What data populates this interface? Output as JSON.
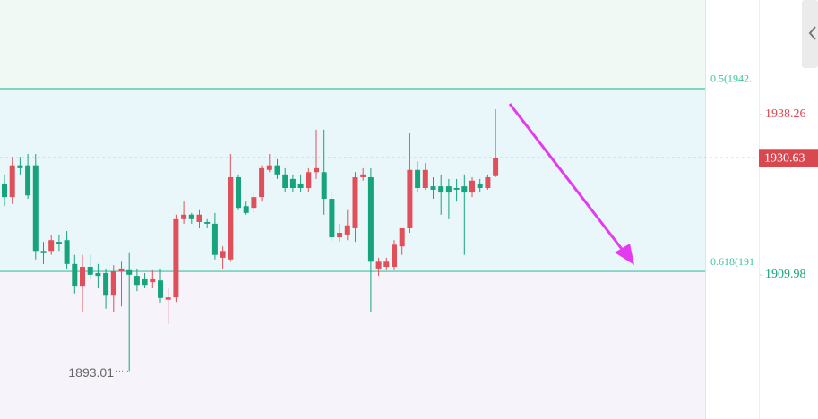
{
  "chart_data": {
    "type": "candlestick",
    "open": [
      1926.1,
      1923.7,
      1929.3,
      1929.3,
      1929.3,
      1914.2,
      1914.2,
      1915.8,
      1916.1,
      1911.9,
      1907.9,
      1911.4,
      1910.3,
      1910.3,
      1906.3,
      1910.6,
      1910.8,
      1909.8,
      1909.2,
      1908.7,
      1909.0,
      1905.6,
      1906.0,
      1919.8,
      1920.6,
      1919.3,
      1919.3,
      1919.0,
      1913.0,
      1912.7,
      1927.2,
      1922.1,
      1921.8,
      1923.7,
      1928.5,
      1929.3,
      1927.7,
      1926.9,
      1926.1,
      1925.3,
      1928.1,
      1928.1,
      1923.4,
      1916.6,
      1917.1,
      1918.2,
      1927.2,
      1927.2,
      1911.1,
      1911.4,
      1911.4,
      1915.0,
      1918.2,
      1928.5,
      1925.3,
      1925.6,
      1925.6,
      1925.6,
      1925.3,
      1925.6,
      1924.5,
      1926.1,
      1925.3,
      1927.4
    ],
    "high": [
      1927.7,
      1930.8,
      1930.8,
      1931.3,
      1931.3,
      1915.8,
      1917.1,
      1917.1,
      1917.7,
      1913.5,
      1913.5,
      1913.5,
      1911.9,
      1911.1,
      1911.7,
      1912.3,
      1913.8,
      1911.1,
      1910.3,
      1910.8,
      1911.1,
      1907.6,
      1920.6,
      1922.9,
      1920.9,
      1921.4,
      1919.8,
      1920.9,
      1915.0,
      1931.3,
      1927.7,
      1922.9,
      1924.5,
      1929.3,
      1931.3,
      1930.4,
      1928.8,
      1927.7,
      1927.7,
      1928.8,
      1935.6,
      1935.6,
      1924.5,
      1919.0,
      1921.4,
      1928.1,
      1928.8,
      1928.8,
      1913.0,
      1913.0,
      1916.1,
      1918.2,
      1935.1,
      1930.0,
      1929.7,
      1927.2,
      1927.7,
      1926.9,
      1926.9,
      1927.7,
      1927.2,
      1926.9,
      1927.7,
      1939.2
    ],
    "low": [
      1922.1,
      1922.5,
      1927.7,
      1923.4,
      1912.7,
      1911.9,
      1913.5,
      1914.2,
      1911.1,
      1906.7,
      1903.5,
      1909.2,
      1907.6,
      1904.0,
      1903.5,
      1904.4,
      1893.01,
      1907.1,
      1907.6,
      1907.6,
      1905.1,
      1901.3,
      1905.2,
      1919.0,
      1919.0,
      1918.2,
      1918.2,
      1912.7,
      1911.1,
      1912.3,
      1921.4,
      1920.6,
      1920.9,
      1922.9,
      1928.1,
      1926.9,
      1924.5,
      1924.5,
      1924.5,
      1924.5,
      1926.9,
      1920.6,
      1915.8,
      1915.8,
      1916.1,
      1915.8,
      1926.6,
      1903.5,
      1909.8,
      1910.8,
      1910.8,
      1913.5,
      1917.4,
      1924.5,
      1925.0,
      1923.4,
      1920.6,
      1919.8,
      1922.9,
      1913.5,
      1923.7,
      1924.5,
      1925.0,
      1927.2
    ],
    "close": [
      1923.7,
      1929.3,
      1928.8,
      1924.0,
      1914.2,
      1913.8,
      1916.1,
      1915.5,
      1911.9,
      1907.9,
      1911.4,
      1910.0,
      1909.8,
      1906.3,
      1910.6,
      1911.1,
      1910.0,
      1908.2,
      1908.2,
      1909.2,
      1905.9,
      1906.0,
      1919.8,
      1920.6,
      1919.8,
      1920.6,
      1919.0,
      1913.5,
      1914.2,
      1927.2,
      1921.8,
      1920.9,
      1923.7,
      1928.8,
      1929.3,
      1927.7,
      1925.3,
      1925.3,
      1925.3,
      1928.1,
      1928.8,
      1923.4,
      1916.6,
      1917.4,
      1918.7,
      1927.2,
      1927.7,
      1912.3,
      1912.3,
      1912.3,
      1915.3,
      1918.2,
      1928.5,
      1925.3,
      1928.5,
      1925.0,
      1924.5,
      1924.5,
      1925.0,
      1924.5,
      1926.6,
      1925.3,
      1927.2,
      1930.63
    ],
    "up_color": "#e0505a",
    "down_color": "#17a37b",
    "ylim": [
      1884.54,
      1958.48
    ],
    "yticks": [
      1938.26,
      1909.98
    ],
    "ytick_colors": [
      "#d9474f",
      "#17a37b"
    ],
    "current_price": 1930.63,
    "current_price_color": "#d9474f",
    "fib_levels": [
      {
        "value": 1942.84,
        "label": "0.5(1942."
      },
      {
        "value": 1910.6,
        "label": "0.618(191"
      }
    ],
    "fib_color": "#3cc3a0",
    "min_annotation": 1893.01
  }
}
